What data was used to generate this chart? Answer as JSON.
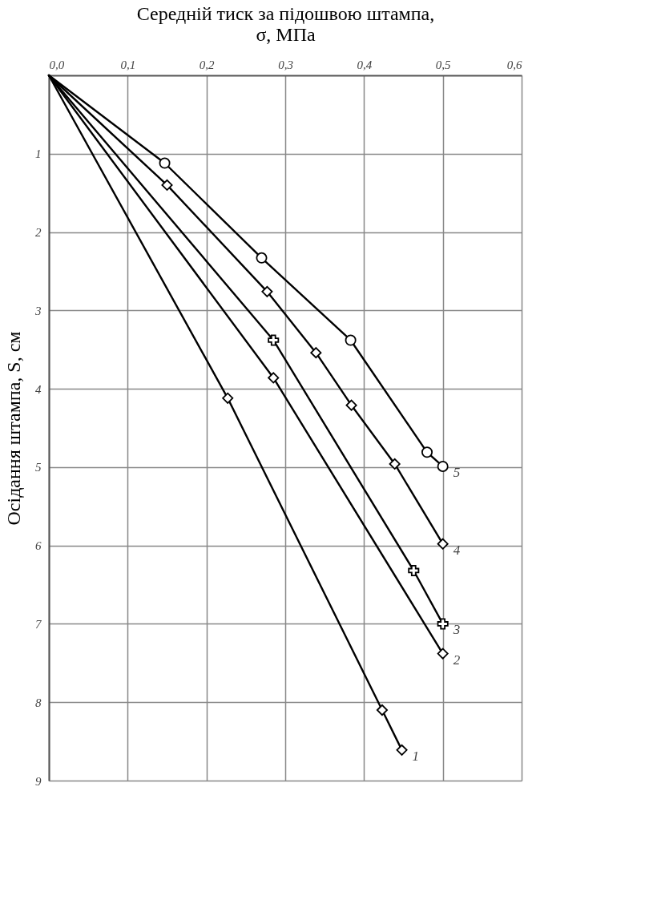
{
  "chart_data": {
    "type": "line",
    "xlabel": "Середній тиск за підошвою штампа, σ, МПа",
    "ylabel": "Осідання штампа, S, см",
    "xlim": [
      0,
      0.6
    ],
    "xticks": [
      {
        "value": 0,
        "label": "0,0"
      },
      {
        "value": 0.1,
        "label": "0,1"
      },
      {
        "value": 0.2,
        "label": "0,2"
      },
      {
        "value": 0.3,
        "label": "0,3"
      },
      {
        "value": 0.4,
        "label": "0,4"
      },
      {
        "value": 0.5,
        "label": "0,5"
      },
      {
        "value": 0.6,
        "label": "0,6"
      }
    ],
    "ylim": [
      9,
      0
    ],
    "yticks": [
      1,
      2,
      3,
      4,
      5,
      6,
      7,
      8,
      9
    ],
    "grid": true,
    "series": [
      {
        "name": "1",
        "color": "#000000",
        "marker": "diamond",
        "x": [
          0,
          0.227,
          0.423,
          0.448
        ],
        "values": [
          0,
          4.12,
          8.1,
          8.61
        ]
      },
      {
        "name": "2",
        "color": "#000000",
        "marker": "diamond",
        "x": [
          0,
          0.285,
          0.5
        ],
        "values": [
          0,
          3.86,
          7.38
        ]
      },
      {
        "name": "3",
        "color": "#000000",
        "marker": "cross",
        "x": [
          0,
          0.285,
          0.463,
          0.5
        ],
        "values": [
          0,
          3.38,
          6.32,
          7.0
        ]
      },
      {
        "name": "4",
        "color": "#000000",
        "marker": "diamond",
        "x": [
          0,
          0.15,
          0.277,
          0.339,
          0.384,
          0.439,
          0.5
        ],
        "values": [
          0,
          1.4,
          2.76,
          3.54,
          4.21,
          4.96,
          5.98
        ]
      },
      {
        "name": "5",
        "color": "#000000",
        "marker": "circle",
        "x": [
          0,
          0.147,
          0.27,
          0.383,
          0.48,
          0.5
        ],
        "values": [
          0,
          1.12,
          2.33,
          3.38,
          4.81,
          4.99
        ]
      }
    ]
  }
}
